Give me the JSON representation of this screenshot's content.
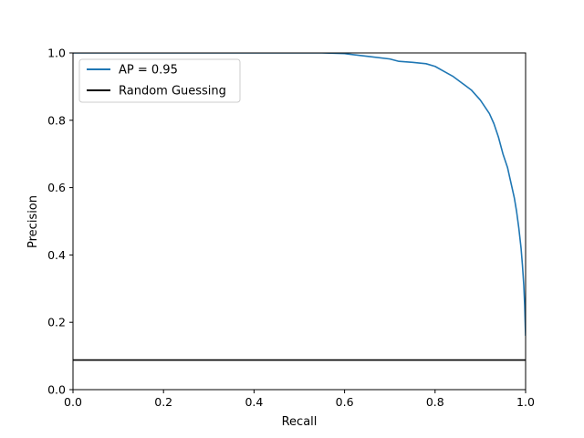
{
  "chart_data": {
    "type": "line",
    "xlabel": "Recall",
    "ylabel": "Precision",
    "xlim": [
      0.0,
      1.0
    ],
    "ylim": [
      0.0,
      1.0
    ],
    "xticks": [
      "0.0",
      "0.2",
      "0.4",
      "0.6",
      "0.8",
      "1.0"
    ],
    "yticks": [
      "0.0",
      "0.2",
      "0.4",
      "0.6",
      "0.8",
      "1.0"
    ],
    "grid": false,
    "legend_position": "top-left",
    "series": [
      {
        "name": "AP = 0.95",
        "color": "#1f77b4",
        "x": [
          0.0,
          0.55,
          0.6,
          0.65,
          0.7,
          0.72,
          0.75,
          0.78,
          0.8,
          0.82,
          0.84,
          0.86,
          0.88,
          0.9,
          0.91,
          0.92,
          0.93,
          0.94,
          0.95,
          0.96,
          0.965,
          0.97,
          0.975,
          0.98,
          0.985,
          0.99,
          0.993,
          0.996,
          0.998,
          1.0
        ],
        "y": [
          1.0,
          1.0,
          0.998,
          0.99,
          0.982,
          0.975,
          0.972,
          0.968,
          0.96,
          0.945,
          0.93,
          0.91,
          0.89,
          0.86,
          0.84,
          0.82,
          0.79,
          0.75,
          0.7,
          0.66,
          0.63,
          0.6,
          0.57,
          0.53,
          0.48,
          0.42,
          0.37,
          0.31,
          0.25,
          0.16
        ]
      },
      {
        "name": "Random Guessing",
        "color": "#000000",
        "x": [
          0.0,
          1.0
        ],
        "y": [
          0.088,
          0.088
        ]
      }
    ]
  }
}
